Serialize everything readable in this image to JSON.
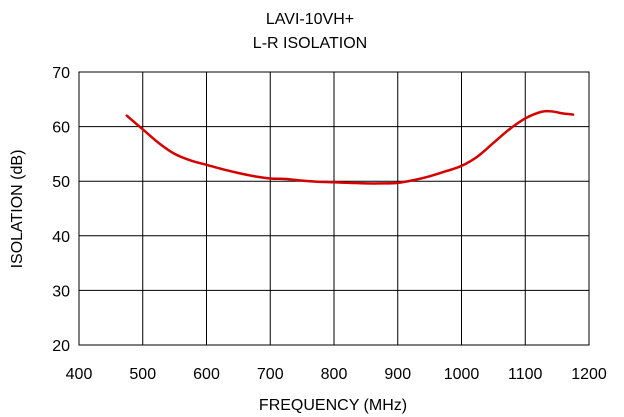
{
  "chart_data": {
    "type": "line",
    "title": "LAVI-10VH+",
    "subtitle": "L-R ISOLATION",
    "xlabel": "FREQUENCY (MHz)",
    "ylabel": "ISOLATION (dB)",
    "xlim": [
      400,
      1200
    ],
    "ylim": [
      20,
      70
    ],
    "xticks": [
      400,
      500,
      600,
      700,
      800,
      900,
      1000,
      1100,
      1200
    ],
    "yticks": [
      20,
      30,
      40,
      50,
      60,
      70
    ],
    "grid": true,
    "line_color": "#d40000",
    "series": [
      {
        "x": [
          475,
          500,
          525,
          550,
          575,
          600,
          625,
          650,
          675,
          700,
          725,
          750,
          775,
          800,
          825,
          850,
          875,
          900,
          925,
          950,
          975,
          1000,
          1025,
          1050,
          1075,
          1100,
          1125,
          1140,
          1160,
          1175
        ],
        "values": [
          62.0,
          59.5,
          57.0,
          55.0,
          53.8,
          53.0,
          52.2,
          51.5,
          50.9,
          50.5,
          50.4,
          50.1,
          49.9,
          49.8,
          49.7,
          49.6,
          49.6,
          49.7,
          50.2,
          50.9,
          51.8,
          52.8,
          54.5,
          57.0,
          59.5,
          61.5,
          62.7,
          62.8,
          62.4,
          62.2
        ]
      }
    ]
  }
}
